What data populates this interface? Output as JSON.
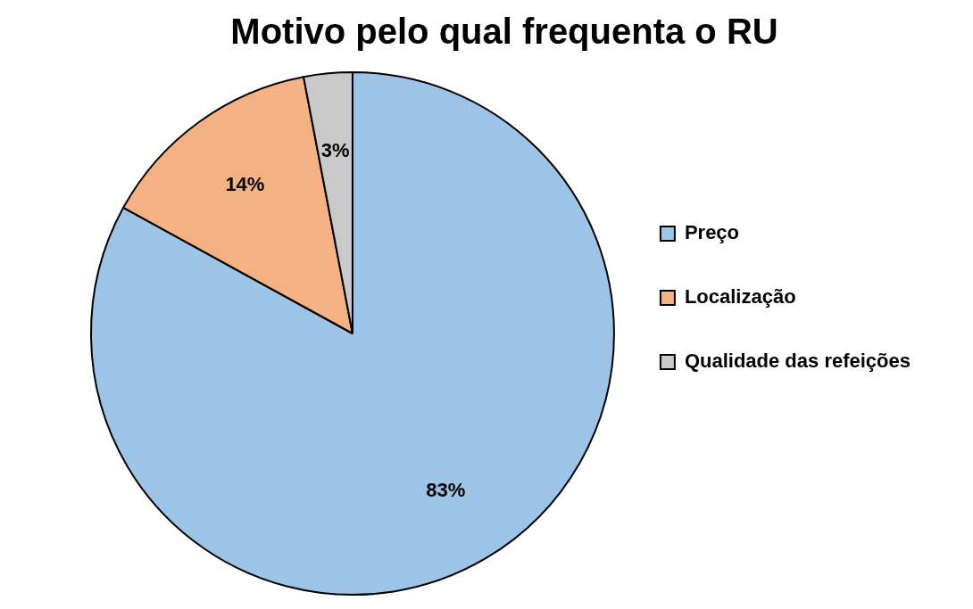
{
  "chart_data": {
    "type": "pie",
    "title": "Motivo pelo qual frequenta o RU",
    "categories": [
      "Preço",
      "Localização",
      "Qualidade das refeições"
    ],
    "values": [
      83,
      14,
      3
    ],
    "value_labels": [
      "83%",
      "14%",
      "3%"
    ],
    "colors": [
      "#9dc3e6",
      "#f4b183",
      "#c9c9c9"
    ],
    "legend": "right",
    "data_labels": true
  }
}
